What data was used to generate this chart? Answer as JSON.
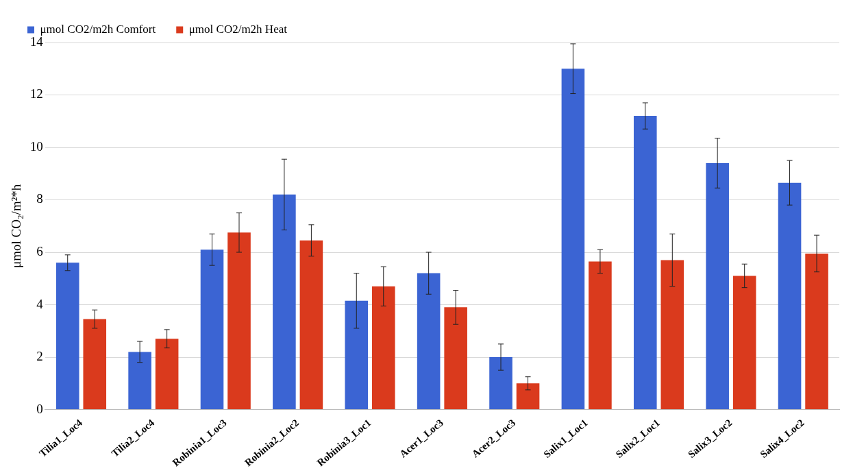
{
  "chart_data": {
    "type": "bar",
    "ylabel": "μmol CO₂/m²*h",
    "categories": [
      "Tilia1_Loc4",
      "Tilia2_Loc4",
      "Robinia1_Loc3",
      "Robinia2_Loc2",
      "Robinia3_Loc1",
      "Acer1_Loc3",
      "Acer2_Loc3",
      "Salix1_Loc1",
      "Salix2_Loc1",
      "Salix3_Loc2",
      "Salix4_Loc2"
    ],
    "series": [
      {
        "name": "μmol CO2/m2h Comfort",
        "color": "#3b64d3",
        "values": [
          5.6,
          2.2,
          6.1,
          8.2,
          4.15,
          5.2,
          2.0,
          13.0,
          11.2,
          9.4,
          8.65
        ],
        "errors": [
          0.3,
          0.4,
          0.6,
          1.35,
          1.05,
          0.8,
          0.5,
          0.95,
          0.5,
          0.95,
          0.85
        ]
      },
      {
        "name": "μmol CO2/m2h Heat",
        "color": "#da3a1d",
        "values": [
          3.45,
          2.7,
          6.75,
          6.45,
          4.7,
          3.9,
          1.0,
          5.65,
          5.7,
          5.1,
          5.95
        ],
        "errors": [
          0.35,
          0.35,
          0.75,
          0.6,
          0.75,
          0.65,
          0.25,
          0.45,
          1.0,
          0.45,
          0.7
        ]
      }
    ],
    "ylim": [
      0,
      14
    ],
    "yticks": [
      0,
      2,
      4,
      6,
      8,
      10,
      12,
      14
    ],
    "grid": "y",
    "legend": "top left"
  }
}
